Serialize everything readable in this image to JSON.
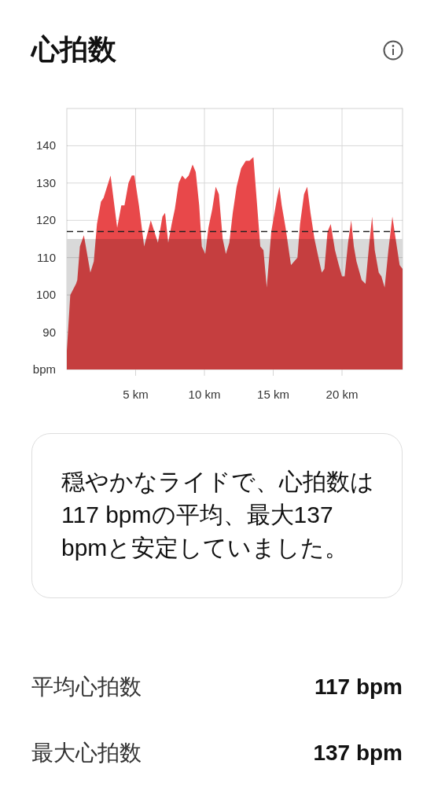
{
  "chart_data": {
    "type": "area",
    "title": "心拍数",
    "x": [
      0,
      0.25,
      0.67,
      0.76,
      0.95,
      1.24,
      1.71,
      1.96,
      2.19,
      2.48,
      2.67,
      3.18,
      3.66,
      3.96,
      4.19,
      4.48,
      4.72,
      4.91,
      5.24,
      5.62,
      6.1,
      6.62,
      6.95,
      7.14,
      7.37,
      7.62,
      7.85,
      8.13,
      8.38,
      8.61,
      8.86,
      9.14,
      9.37,
      9.62,
      9.81,
      10.06,
      10.29,
      10.57,
      10.82,
      11.05,
      11.33,
      11.56,
      11.81,
      12.06,
      12.34,
      12.67,
      13.01,
      13.28,
      13.56,
      14.06,
      14.29,
      14.53,
      14.86,
      15.28,
      15.45,
      15.62,
      15.9,
      16.29,
      16.76,
      16.95,
      17.24,
      17.47,
      17.71,
      18.0,
      18.29,
      18.53,
      18.72,
      18.95,
      19.18,
      19.49,
      19.77,
      20.0,
      20.19,
      20.44,
      20.67,
      20.86,
      21.05,
      21.43,
      21.71,
      21.96,
      22.19,
      22.38,
      22.67,
      22.86,
      23.1,
      23.37,
      23.66,
      23.9,
      24.19,
      24.4
    ],
    "series": [
      {
        "color": "#e8484a",
        "values": [
          85,
          100,
          103,
          104,
          113,
          116,
          106,
          109,
          119,
          125,
          126,
          132,
          118,
          124,
          124,
          130,
          132,
          132,
          124,
          113,
          120,
          114,
          121,
          122,
          114,
          119,
          123,
          130,
          132,
          131,
          132,
          135,
          133,
          124,
          113,
          111,
          118,
          123,
          129,
          127,
          115,
          111,
          114,
          122,
          129,
          134,
          136,
          136,
          137,
          113,
          112,
          102,
          117,
          126,
          129,
          124,
          118,
          108,
          110,
          119,
          127,
          129,
          122,
          115,
          110,
          106,
          107,
          117,
          119,
          112,
          108,
          105,
          105,
          114,
          120,
          113,
          109,
          104,
          103,
          113,
          121,
          112,
          106,
          105,
          102,
          112,
          121,
          115,
          108,
          107
        ]
      }
    ],
    "xlim": [
      0,
      24.4
    ],
    "xticks": [
      {
        "value": 5,
        "label": "5 km"
      },
      {
        "value": 10,
        "label": "10 km"
      },
      {
        "value": 15,
        "label": "15 km"
      },
      {
        "value": 20,
        "label": "20 km"
      }
    ],
    "ylim": [
      80,
      150
    ],
    "yticks": [
      {
        "value": 80,
        "label": "bpm"
      },
      90,
      100,
      110,
      120,
      130,
      140
    ],
    "grid": true,
    "ref_lines": [
      {
        "axis": "y",
        "value": 117,
        "color": "#222222",
        "line_style": "dashed"
      }
    ],
    "bands": [
      {
        "axis": "y",
        "from": 80,
        "to": 115,
        "color": "#d9d9d9"
      }
    ],
    "annotations": [
      "穏やかなライドで、心拍数は117 bpmの平均、最大137 bpmと安定していました。",
      "平均心拍数",
      "117 bpm",
      "最大心拍数",
      "137 bpm"
    ]
  }
}
